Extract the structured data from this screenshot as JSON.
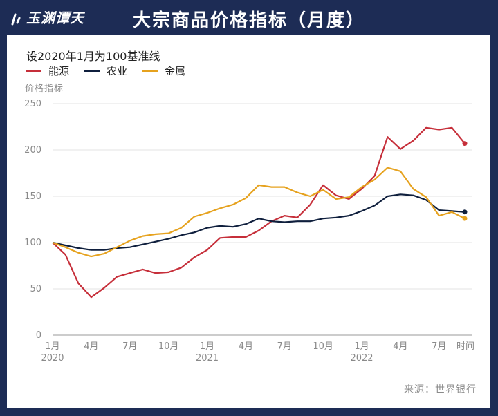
{
  "header": {
    "brand": "玉渊谭天",
    "title": "大宗商品价格指标（月度）"
  },
  "subtitle": "设2020年1月为100基准线",
  "source": "来源：世界银行",
  "colors": {
    "energy": "#c62f3a",
    "agriculture": "#0f1f3d",
    "metals": "#e6a21e",
    "background": "#1d2c55"
  },
  "chart_data": {
    "type": "line",
    "ylabel": "价格指标",
    "xlabel": "时间",
    "ylim": [
      0,
      250
    ],
    "yticks": [
      0,
      50,
      100,
      150,
      200,
      250
    ],
    "grid": true,
    "legend": "top-left",
    "x": [
      "2020-01",
      "2020-02",
      "2020-03",
      "2020-04",
      "2020-05",
      "2020-06",
      "2020-07",
      "2020-08",
      "2020-09",
      "2020-10",
      "2020-11",
      "2020-12",
      "2021-01",
      "2021-02",
      "2021-03",
      "2021-04",
      "2021-05",
      "2021-06",
      "2021-07",
      "2021-08",
      "2021-09",
      "2021-10",
      "2021-11",
      "2021-12",
      "2022-01",
      "2022-02",
      "2022-03",
      "2022-04",
      "2022-05",
      "2022-06",
      "2022-07",
      "2022-08",
      "2022-09"
    ],
    "xticks": [
      {
        "index": 0,
        "label": "1月",
        "year": "2020"
      },
      {
        "index": 3,
        "label": "4月",
        "year": ""
      },
      {
        "index": 6,
        "label": "7月",
        "year": ""
      },
      {
        "index": 9,
        "label": "10月",
        "year": ""
      },
      {
        "index": 12,
        "label": "1月",
        "year": "2021"
      },
      {
        "index": 15,
        "label": "4月",
        "year": ""
      },
      {
        "index": 18,
        "label": "7月",
        "year": ""
      },
      {
        "index": 21,
        "label": "10月",
        "year": ""
      },
      {
        "index": 24,
        "label": "1月",
        "year": "2022"
      },
      {
        "index": 27,
        "label": "4月",
        "year": ""
      },
      {
        "index": 30,
        "label": "7月",
        "year": ""
      }
    ],
    "series": [
      {
        "name": "能源",
        "color": "#c62f3a",
        "values": [
          100,
          87,
          56,
          41,
          51,
          63,
          67,
          71,
          67,
          68,
          73,
          84,
          92,
          105,
          106,
          106,
          113,
          123,
          129,
          127,
          141,
          162,
          151,
          147,
          158,
          172,
          214,
          201,
          210,
          224,
          222,
          224,
          207
        ]
      },
      {
        "name": "农业",
        "color": "#0f1f3d",
        "values": [
          100,
          97,
          94,
          92,
          92,
          94,
          95,
          98,
          101,
          104,
          108,
          111,
          116,
          118,
          117,
          120,
          126,
          123,
          122,
          123,
          123,
          126,
          127,
          129,
          134,
          140,
          150,
          152,
          151,
          146,
          135,
          134,
          133
        ]
      },
      {
        "name": "金属",
        "color": "#e6a21e",
        "values": [
          100,
          95,
          89,
          85,
          88,
          95,
          102,
          107,
          109,
          110,
          116,
          128,
          132,
          137,
          141,
          148,
          162,
          160,
          160,
          154,
          150,
          157,
          147,
          149,
          160,
          168,
          181,
          177,
          158,
          149,
          129,
          133,
          126
        ]
      }
    ]
  }
}
